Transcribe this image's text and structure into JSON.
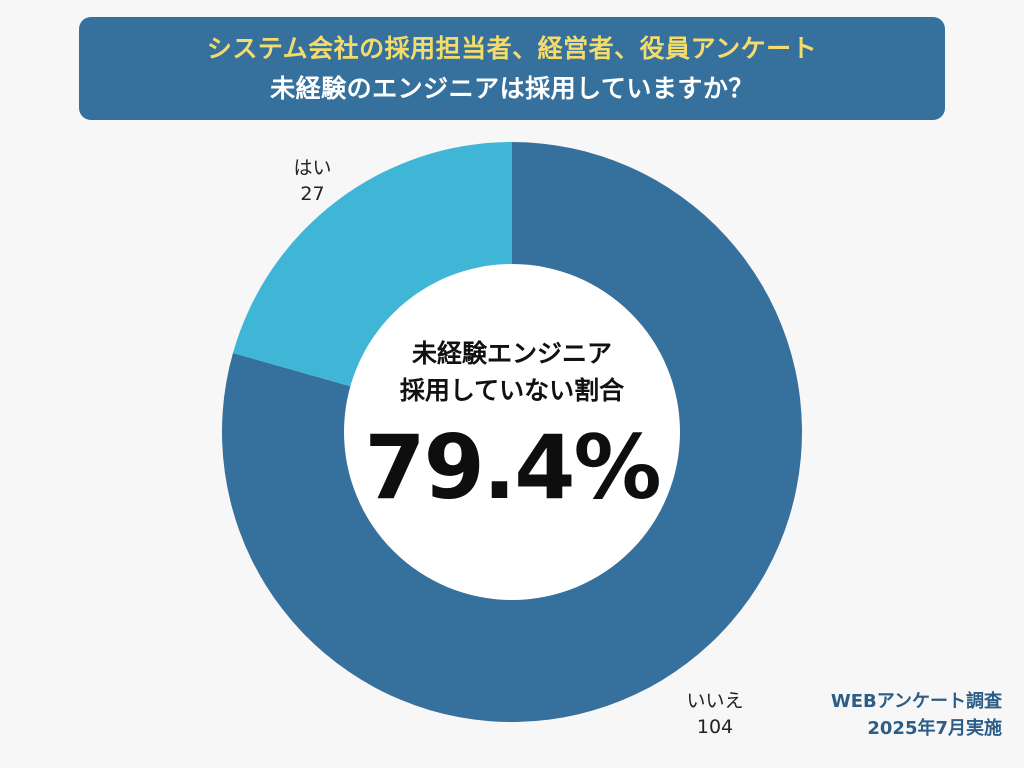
{
  "header": {
    "title_line1": "システム会社の採用担当者、経営者、役員アンケート",
    "title_line2": "未経験のエンジニアは採用していますか？"
  },
  "center": {
    "line1": "未経験エンジニア",
    "line2": "採用していない割合",
    "value": "79.4%"
  },
  "source": {
    "line1": "WEBアンケート調査",
    "line2": "2025年7月実施"
  },
  "colors": {
    "header_bg": "#36709d",
    "header_line1": "#f4dc6c",
    "no": "#36709d",
    "yes": "#40b6d6",
    "hole": "#ffffff",
    "source_text": "#2d5d86"
  },
  "chart_data": {
    "type": "pie",
    "style": "donut",
    "title": "未経験のエンジニアは採用していますか？",
    "slices": [
      {
        "label": "いいえ",
        "value": 104,
        "color": "#36709d"
      },
      {
        "label": "はい",
        "value": 27,
        "color": "#40b6d6"
      }
    ],
    "center_label": "未経験エンジニア 採用していない割合",
    "center_value": "79.4%"
  }
}
